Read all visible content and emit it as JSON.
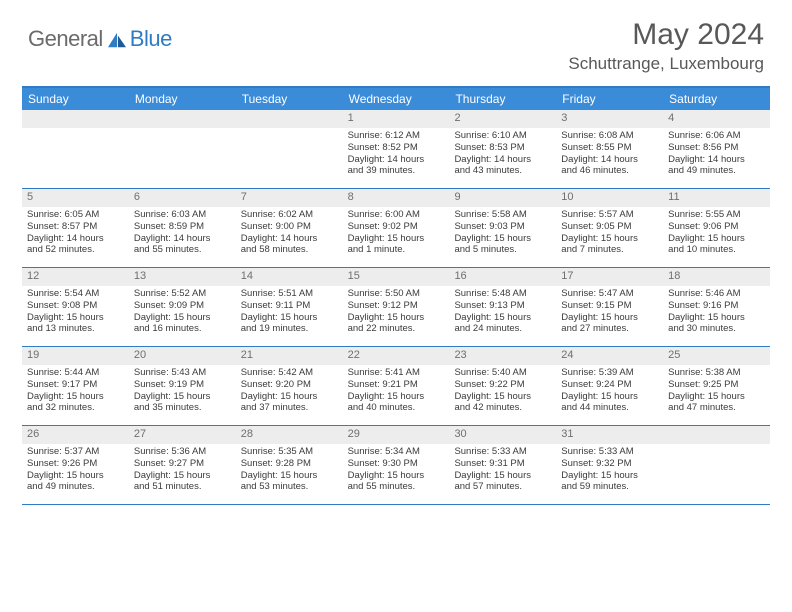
{
  "brand": {
    "general": "General",
    "blue": "Blue"
  },
  "title": "May 2024",
  "location": "Schuttrange, Luxembourg",
  "colors": {
    "header_bg": "#3a8bd8",
    "border": "#2f7cc4",
    "daynum_bg": "#ededed",
    "text": "#3b3b3b",
    "title_text": "#585858"
  },
  "day_names": [
    "Sunday",
    "Monday",
    "Tuesday",
    "Wednesday",
    "Thursday",
    "Friday",
    "Saturday"
  ],
  "weeks": [
    [
      {
        "n": "",
        "l": [
          "",
          "",
          "",
          ""
        ]
      },
      {
        "n": "",
        "l": [
          "",
          "",
          "",
          ""
        ]
      },
      {
        "n": "",
        "l": [
          "",
          "",
          "",
          ""
        ]
      },
      {
        "n": "1",
        "l": [
          "Sunrise: 6:12 AM",
          "Sunset: 8:52 PM",
          "Daylight: 14 hours",
          "and 39 minutes."
        ]
      },
      {
        "n": "2",
        "l": [
          "Sunrise: 6:10 AM",
          "Sunset: 8:53 PM",
          "Daylight: 14 hours",
          "and 43 minutes."
        ]
      },
      {
        "n": "3",
        "l": [
          "Sunrise: 6:08 AM",
          "Sunset: 8:55 PM",
          "Daylight: 14 hours",
          "and 46 minutes."
        ]
      },
      {
        "n": "4",
        "l": [
          "Sunrise: 6:06 AM",
          "Sunset: 8:56 PM",
          "Daylight: 14 hours",
          "and 49 minutes."
        ]
      }
    ],
    [
      {
        "n": "5",
        "l": [
          "Sunrise: 6:05 AM",
          "Sunset: 8:57 PM",
          "Daylight: 14 hours",
          "and 52 minutes."
        ]
      },
      {
        "n": "6",
        "l": [
          "Sunrise: 6:03 AM",
          "Sunset: 8:59 PM",
          "Daylight: 14 hours",
          "and 55 minutes."
        ]
      },
      {
        "n": "7",
        "l": [
          "Sunrise: 6:02 AM",
          "Sunset: 9:00 PM",
          "Daylight: 14 hours",
          "and 58 minutes."
        ]
      },
      {
        "n": "8",
        "l": [
          "Sunrise: 6:00 AM",
          "Sunset: 9:02 PM",
          "Daylight: 15 hours",
          "and 1 minute."
        ]
      },
      {
        "n": "9",
        "l": [
          "Sunrise: 5:58 AM",
          "Sunset: 9:03 PM",
          "Daylight: 15 hours",
          "and 5 minutes."
        ]
      },
      {
        "n": "10",
        "l": [
          "Sunrise: 5:57 AM",
          "Sunset: 9:05 PM",
          "Daylight: 15 hours",
          "and 7 minutes."
        ]
      },
      {
        "n": "11",
        "l": [
          "Sunrise: 5:55 AM",
          "Sunset: 9:06 PM",
          "Daylight: 15 hours",
          "and 10 minutes."
        ]
      }
    ],
    [
      {
        "n": "12",
        "l": [
          "Sunrise: 5:54 AM",
          "Sunset: 9:08 PM",
          "Daylight: 15 hours",
          "and 13 minutes."
        ]
      },
      {
        "n": "13",
        "l": [
          "Sunrise: 5:52 AM",
          "Sunset: 9:09 PM",
          "Daylight: 15 hours",
          "and 16 minutes."
        ]
      },
      {
        "n": "14",
        "l": [
          "Sunrise: 5:51 AM",
          "Sunset: 9:11 PM",
          "Daylight: 15 hours",
          "and 19 minutes."
        ]
      },
      {
        "n": "15",
        "l": [
          "Sunrise: 5:50 AM",
          "Sunset: 9:12 PM",
          "Daylight: 15 hours",
          "and 22 minutes."
        ]
      },
      {
        "n": "16",
        "l": [
          "Sunrise: 5:48 AM",
          "Sunset: 9:13 PM",
          "Daylight: 15 hours",
          "and 24 minutes."
        ]
      },
      {
        "n": "17",
        "l": [
          "Sunrise: 5:47 AM",
          "Sunset: 9:15 PM",
          "Daylight: 15 hours",
          "and 27 minutes."
        ]
      },
      {
        "n": "18",
        "l": [
          "Sunrise: 5:46 AM",
          "Sunset: 9:16 PM",
          "Daylight: 15 hours",
          "and 30 minutes."
        ]
      }
    ],
    [
      {
        "n": "19",
        "l": [
          "Sunrise: 5:44 AM",
          "Sunset: 9:17 PM",
          "Daylight: 15 hours",
          "and 32 minutes."
        ]
      },
      {
        "n": "20",
        "l": [
          "Sunrise: 5:43 AM",
          "Sunset: 9:19 PM",
          "Daylight: 15 hours",
          "and 35 minutes."
        ]
      },
      {
        "n": "21",
        "l": [
          "Sunrise: 5:42 AM",
          "Sunset: 9:20 PM",
          "Daylight: 15 hours",
          "and 37 minutes."
        ]
      },
      {
        "n": "22",
        "l": [
          "Sunrise: 5:41 AM",
          "Sunset: 9:21 PM",
          "Daylight: 15 hours",
          "and 40 minutes."
        ]
      },
      {
        "n": "23",
        "l": [
          "Sunrise: 5:40 AM",
          "Sunset: 9:22 PM",
          "Daylight: 15 hours",
          "and 42 minutes."
        ]
      },
      {
        "n": "24",
        "l": [
          "Sunrise: 5:39 AM",
          "Sunset: 9:24 PM",
          "Daylight: 15 hours",
          "and 44 minutes."
        ]
      },
      {
        "n": "25",
        "l": [
          "Sunrise: 5:38 AM",
          "Sunset: 9:25 PM",
          "Daylight: 15 hours",
          "and 47 minutes."
        ]
      }
    ],
    [
      {
        "n": "26",
        "l": [
          "Sunrise: 5:37 AM",
          "Sunset: 9:26 PM",
          "Daylight: 15 hours",
          "and 49 minutes."
        ]
      },
      {
        "n": "27",
        "l": [
          "Sunrise: 5:36 AM",
          "Sunset: 9:27 PM",
          "Daylight: 15 hours",
          "and 51 minutes."
        ]
      },
      {
        "n": "28",
        "l": [
          "Sunrise: 5:35 AM",
          "Sunset: 9:28 PM",
          "Daylight: 15 hours",
          "and 53 minutes."
        ]
      },
      {
        "n": "29",
        "l": [
          "Sunrise: 5:34 AM",
          "Sunset: 9:30 PM",
          "Daylight: 15 hours",
          "and 55 minutes."
        ]
      },
      {
        "n": "30",
        "l": [
          "Sunrise: 5:33 AM",
          "Sunset: 9:31 PM",
          "Daylight: 15 hours",
          "and 57 minutes."
        ]
      },
      {
        "n": "31",
        "l": [
          "Sunrise: 5:33 AM",
          "Sunset: 9:32 PM",
          "Daylight: 15 hours",
          "and 59 minutes."
        ]
      },
      {
        "n": "",
        "l": [
          "",
          "",
          "",
          ""
        ]
      }
    ]
  ]
}
